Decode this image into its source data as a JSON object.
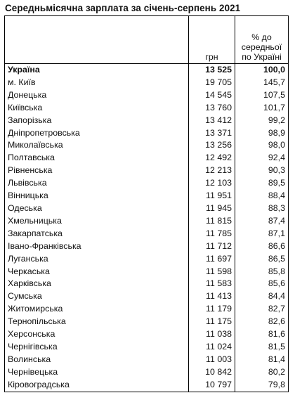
{
  "title": "Середньмісячна зарплата за січень-серпень 2021",
  "table": {
    "headers": {
      "region": "",
      "unit": "грн",
      "pct_line1": "% до",
      "pct_line2": "середньої",
      "pct_line3": "по Україні"
    },
    "rows": [
      {
        "region": "Україна",
        "salary": "13 525",
        "pct": "100,0"
      },
      {
        "region": "м. Київ",
        "salary": "19 705",
        "pct": "145,7"
      },
      {
        "region": "Донецька",
        "salary": "14 545",
        "pct": "107,5"
      },
      {
        "region": "Київська",
        "salary": "13 760",
        "pct": "101,7"
      },
      {
        "region": "Запорізька",
        "salary": "13 412",
        "pct": "99,2"
      },
      {
        "region": "Дніпропетровська",
        "salary": "13 371",
        "pct": "98,9"
      },
      {
        "region": "Миколаївська",
        "salary": "13 256",
        "pct": "98,0"
      },
      {
        "region": "Полтавська",
        "salary": "12 492",
        "pct": "92,4"
      },
      {
        "region": "Рівненська",
        "salary": "12 213",
        "pct": "90,3"
      },
      {
        "region": "Львівська",
        "salary": "12 103",
        "pct": "89,5"
      },
      {
        "region": "Вінницька",
        "salary": "11 951",
        "pct": "88,4"
      },
      {
        "region": "Одеська",
        "salary": "11 945",
        "pct": "88,3"
      },
      {
        "region": "Хмельницька",
        "salary": "11 815",
        "pct": "87,4"
      },
      {
        "region": "Закарпатська",
        "salary": "11 785",
        "pct": "87,1"
      },
      {
        "region": "Івано-Франківська",
        "salary": "11 712",
        "pct": "86,6"
      },
      {
        "region": "Луганська",
        "salary": "11 697",
        "pct": "86,5"
      },
      {
        "region": "Черкаська",
        "salary": "11 598",
        "pct": "85,8"
      },
      {
        "region": "Харківська",
        "salary": "11 583",
        "pct": "85,6"
      },
      {
        "region": "Сумська",
        "salary": "11 413",
        "pct": "84,4"
      },
      {
        "region": "Житомирська",
        "salary": "11 179",
        "pct": "82,7"
      },
      {
        "region": "Тернопільська",
        "salary": "11 175",
        "pct": "82,6"
      },
      {
        "region": "Херсонська",
        "salary": "11 038",
        "pct": "81,6"
      },
      {
        "region": "Чернігівська",
        "salary": "11 024",
        "pct": "81,5"
      },
      {
        "region": "Волинська",
        "salary": "11 003",
        "pct": "81,4"
      },
      {
        "region": "Чернівецька",
        "salary": "10 842",
        "pct": "80,2"
      },
      {
        "region": "Кіровоградська",
        "salary": "10 797",
        "pct": "79,8"
      }
    ]
  }
}
